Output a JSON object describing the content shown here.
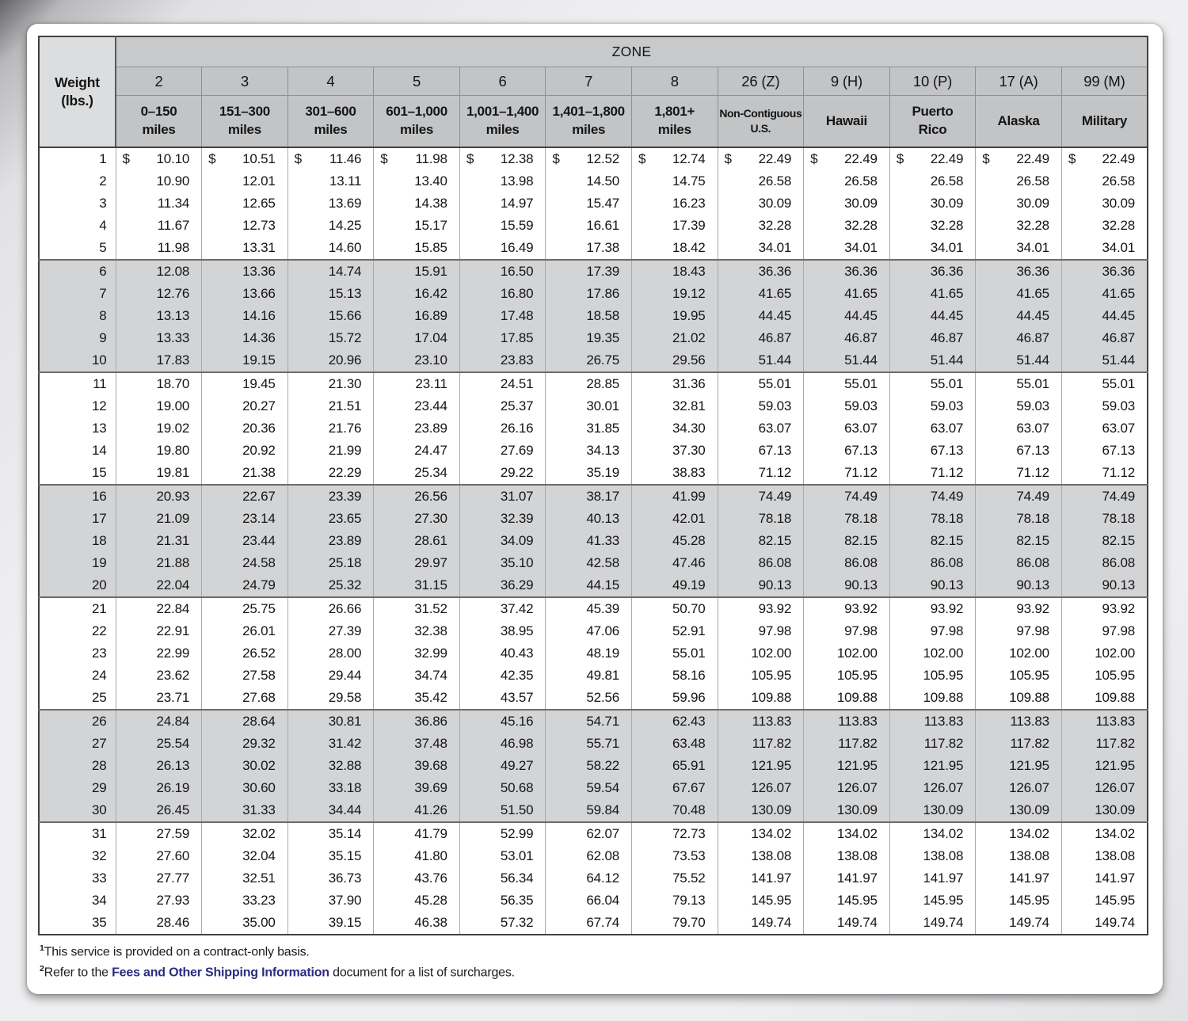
{
  "table": {
    "zone_label": "ZONE",
    "weight_label": "Weight\n(lbs.)",
    "currency": "$",
    "columns": [
      {
        "zone": "2",
        "range": "0–150\nmiles"
      },
      {
        "zone": "3",
        "range": "151–300\nmiles"
      },
      {
        "zone": "4",
        "range": "301–600\nmiles"
      },
      {
        "zone": "5",
        "range": "601–1,000\nmiles"
      },
      {
        "zone": "6",
        "range": "1,001–1,400\nmiles"
      },
      {
        "zone": "7",
        "range": "1,401–1,800\nmiles"
      },
      {
        "zone": "8",
        "range": "1,801+\nmiles"
      },
      {
        "zone": "26 (Z)",
        "range": "Non-Contiguous\nU.S."
      },
      {
        "zone": "9 (H)",
        "range": "Hawaii"
      },
      {
        "zone": "10 (P)",
        "range": "Puerto\nRico"
      },
      {
        "zone": "17 (A)",
        "range": "Alaska"
      },
      {
        "zone": "99 (M)",
        "range": "Military"
      }
    ],
    "rows": [
      {
        "weight": "1",
        "values": [
          "10.10",
          "10.51",
          "11.46",
          "11.98",
          "12.38",
          "12.52",
          "12.74",
          "22.49",
          "22.49",
          "22.49",
          "22.49",
          "22.49"
        ]
      },
      {
        "weight": "2",
        "values": [
          "10.90",
          "12.01",
          "13.11",
          "13.40",
          "13.98",
          "14.50",
          "14.75",
          "26.58",
          "26.58",
          "26.58",
          "26.58",
          "26.58"
        ]
      },
      {
        "weight": "3",
        "values": [
          "11.34",
          "12.65",
          "13.69",
          "14.38",
          "14.97",
          "15.47",
          "16.23",
          "30.09",
          "30.09",
          "30.09",
          "30.09",
          "30.09"
        ]
      },
      {
        "weight": "4",
        "values": [
          "11.67",
          "12.73",
          "14.25",
          "15.17",
          "15.59",
          "16.61",
          "17.39",
          "32.28",
          "32.28",
          "32.28",
          "32.28",
          "32.28"
        ]
      },
      {
        "weight": "5",
        "values": [
          "11.98",
          "13.31",
          "14.60",
          "15.85",
          "16.49",
          "17.38",
          "18.42",
          "34.01",
          "34.01",
          "34.01",
          "34.01",
          "34.01"
        ]
      },
      {
        "weight": "6",
        "values": [
          "12.08",
          "13.36",
          "14.74",
          "15.91",
          "16.50",
          "17.39",
          "18.43",
          "36.36",
          "36.36",
          "36.36",
          "36.36",
          "36.36"
        ]
      },
      {
        "weight": "7",
        "values": [
          "12.76",
          "13.66",
          "15.13",
          "16.42",
          "16.80",
          "17.86",
          "19.12",
          "41.65",
          "41.65",
          "41.65",
          "41.65",
          "41.65"
        ]
      },
      {
        "weight": "8",
        "values": [
          "13.13",
          "14.16",
          "15.66",
          "16.89",
          "17.48",
          "18.58",
          "19.95",
          "44.45",
          "44.45",
          "44.45",
          "44.45",
          "44.45"
        ]
      },
      {
        "weight": "9",
        "values": [
          "13.33",
          "14.36",
          "15.72",
          "17.04",
          "17.85",
          "19.35",
          "21.02",
          "46.87",
          "46.87",
          "46.87",
          "46.87",
          "46.87"
        ]
      },
      {
        "weight": "10",
        "values": [
          "17.83",
          "19.15",
          "20.96",
          "23.10",
          "23.83",
          "26.75",
          "29.56",
          "51.44",
          "51.44",
          "51.44",
          "51.44",
          "51.44"
        ]
      },
      {
        "weight": "11",
        "values": [
          "18.70",
          "19.45",
          "21.30",
          "23.11",
          "24.51",
          "28.85",
          "31.36",
          "55.01",
          "55.01",
          "55.01",
          "55.01",
          "55.01"
        ]
      },
      {
        "weight": "12",
        "values": [
          "19.00",
          "20.27",
          "21.51",
          "23.44",
          "25.37",
          "30.01",
          "32.81",
          "59.03",
          "59.03",
          "59.03",
          "59.03",
          "59.03"
        ]
      },
      {
        "weight": "13",
        "values": [
          "19.02",
          "20.36",
          "21.76",
          "23.89",
          "26.16",
          "31.85",
          "34.30",
          "63.07",
          "63.07",
          "63.07",
          "63.07",
          "63.07"
        ]
      },
      {
        "weight": "14",
        "values": [
          "19.80",
          "20.92",
          "21.99",
          "24.47",
          "27.69",
          "34.13",
          "37.30",
          "67.13",
          "67.13",
          "67.13",
          "67.13",
          "67.13"
        ]
      },
      {
        "weight": "15",
        "values": [
          "19.81",
          "21.38",
          "22.29",
          "25.34",
          "29.22",
          "35.19",
          "38.83",
          "71.12",
          "71.12",
          "71.12",
          "71.12",
          "71.12"
        ]
      },
      {
        "weight": "16",
        "values": [
          "20.93",
          "22.67",
          "23.39",
          "26.56",
          "31.07",
          "38.17",
          "41.99",
          "74.49",
          "74.49",
          "74.49",
          "74.49",
          "74.49"
        ]
      },
      {
        "weight": "17",
        "values": [
          "21.09",
          "23.14",
          "23.65",
          "27.30",
          "32.39",
          "40.13",
          "42.01",
          "78.18",
          "78.18",
          "78.18",
          "78.18",
          "78.18"
        ]
      },
      {
        "weight": "18",
        "values": [
          "21.31",
          "23.44",
          "23.89",
          "28.61",
          "34.09",
          "41.33",
          "45.28",
          "82.15",
          "82.15",
          "82.15",
          "82.15",
          "82.15"
        ]
      },
      {
        "weight": "19",
        "values": [
          "21.88",
          "24.58",
          "25.18",
          "29.97",
          "35.10",
          "42.58",
          "47.46",
          "86.08",
          "86.08",
          "86.08",
          "86.08",
          "86.08"
        ]
      },
      {
        "weight": "20",
        "values": [
          "22.04",
          "24.79",
          "25.32",
          "31.15",
          "36.29",
          "44.15",
          "49.19",
          "90.13",
          "90.13",
          "90.13",
          "90.13",
          "90.13"
        ]
      },
      {
        "weight": "21",
        "values": [
          "22.84",
          "25.75",
          "26.66",
          "31.52",
          "37.42",
          "45.39",
          "50.70",
          "93.92",
          "93.92",
          "93.92",
          "93.92",
          "93.92"
        ]
      },
      {
        "weight": "22",
        "values": [
          "22.91",
          "26.01",
          "27.39",
          "32.38",
          "38.95",
          "47.06",
          "52.91",
          "97.98",
          "97.98",
          "97.98",
          "97.98",
          "97.98"
        ]
      },
      {
        "weight": "23",
        "values": [
          "22.99",
          "26.52",
          "28.00",
          "32.99",
          "40.43",
          "48.19",
          "55.01",
          "102.00",
          "102.00",
          "102.00",
          "102.00",
          "102.00"
        ]
      },
      {
        "weight": "24",
        "values": [
          "23.62",
          "27.58",
          "29.44",
          "34.74",
          "42.35",
          "49.81",
          "58.16",
          "105.95",
          "105.95",
          "105.95",
          "105.95",
          "105.95"
        ]
      },
      {
        "weight": "25",
        "values": [
          "23.71",
          "27.68",
          "29.58",
          "35.42",
          "43.57",
          "52.56",
          "59.96",
          "109.88",
          "109.88",
          "109.88",
          "109.88",
          "109.88"
        ]
      },
      {
        "weight": "26",
        "values": [
          "24.84",
          "28.64",
          "30.81",
          "36.86",
          "45.16",
          "54.71",
          "62.43",
          "113.83",
          "113.83",
          "113.83",
          "113.83",
          "113.83"
        ]
      },
      {
        "weight": "27",
        "values": [
          "25.54",
          "29.32",
          "31.42",
          "37.48",
          "46.98",
          "55.71",
          "63.48",
          "117.82",
          "117.82",
          "117.82",
          "117.82",
          "117.82"
        ]
      },
      {
        "weight": "28",
        "values": [
          "26.13",
          "30.02",
          "32.88",
          "39.68",
          "49.27",
          "58.22",
          "65.91",
          "121.95",
          "121.95",
          "121.95",
          "121.95",
          "121.95"
        ]
      },
      {
        "weight": "29",
        "values": [
          "26.19",
          "30.60",
          "33.18",
          "39.69",
          "50.68",
          "59.54",
          "67.67",
          "126.07",
          "126.07",
          "126.07",
          "126.07",
          "126.07"
        ]
      },
      {
        "weight": "30",
        "values": [
          "26.45",
          "31.33",
          "34.44",
          "41.26",
          "51.50",
          "59.84",
          "70.48",
          "130.09",
          "130.09",
          "130.09",
          "130.09",
          "130.09"
        ]
      },
      {
        "weight": "31",
        "values": [
          "27.59",
          "32.02",
          "35.14",
          "41.79",
          "52.99",
          "62.07",
          "72.73",
          "134.02",
          "134.02",
          "134.02",
          "134.02",
          "134.02"
        ]
      },
      {
        "weight": "32",
        "values": [
          "27.60",
          "32.04",
          "35.15",
          "41.80",
          "53.01",
          "62.08",
          "73.53",
          "138.08",
          "138.08",
          "138.08",
          "138.08",
          "138.08"
        ]
      },
      {
        "weight": "33",
        "values": [
          "27.77",
          "32.51",
          "36.73",
          "43.76",
          "56.34",
          "64.12",
          "75.52",
          "141.97",
          "141.97",
          "141.97",
          "141.97",
          "141.97"
        ]
      },
      {
        "weight": "34",
        "values": [
          "27.93",
          "33.23",
          "37.90",
          "45.28",
          "56.35",
          "66.04",
          "79.13",
          "145.95",
          "145.95",
          "145.95",
          "145.95",
          "145.95"
        ]
      },
      {
        "weight": "35",
        "values": [
          "28.46",
          "35.00",
          "39.15",
          "46.38",
          "57.32",
          "67.74",
          "79.70",
          "149.74",
          "149.74",
          "149.74",
          "149.74",
          "149.74"
        ]
      }
    ]
  },
  "footnotes": {
    "fn1_sup": "1",
    "fn1_text": "This service is provided on a contract-only basis.",
    "fn2_sup": "2",
    "fn2_pre": "Refer to the ",
    "fn2_link": "Fees and Other Shipping Information",
    "fn2_post": " document for a list of surcharges."
  },
  "colors": {
    "link": "#2e2a80",
    "zone_banner_gray": "#c8c9cb",
    "header_gray": "#c3c4c6",
    "weight_header_gray": "#dcdddf",
    "band_row_gray": "#d3d4d6"
  }
}
